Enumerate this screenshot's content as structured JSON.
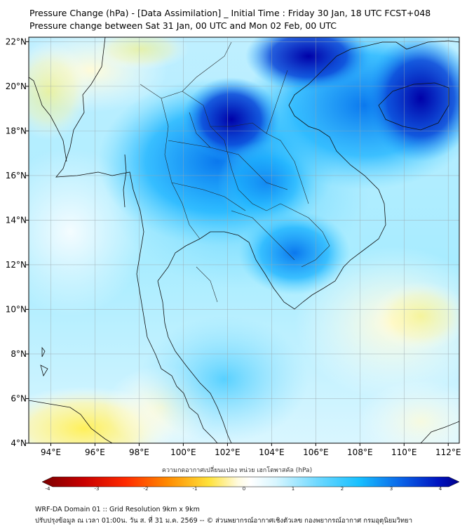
{
  "header": {
    "title_line1": "Pressure Change (hPa) - [Data Assimilation] _ Initial Time : Friday 30 Jan, 18 UTC FCST+048",
    "title_line2": "Pressure change between Sat 31 Jan, 00 UTC and Mon 02 Feb, 00 UTC"
  },
  "map": {
    "lon_ticks": [
      "94°E",
      "96°E",
      "98°E",
      "100°E",
      "102°E",
      "104°E",
      "106°E",
      "108°E",
      "110°E",
      "112°E"
    ],
    "lon_values": [
      94,
      96,
      98,
      100,
      102,
      104,
      106,
      108,
      110,
      112
    ],
    "lat_ticks": [
      "22°N",
      "20°N",
      "18°N",
      "16°N",
      "14°N",
      "12°N",
      "10°N",
      "8°N",
      "6°N",
      "4°N"
    ],
    "lat_values": [
      22,
      20,
      18,
      16,
      14,
      12,
      10,
      8,
      6,
      4
    ],
    "lon_range": [
      93,
      112.5
    ],
    "lat_range": [
      4,
      22.2
    ]
  },
  "colorbar": {
    "label": "ความกดอากาศเปลี่ยนแปลง หน่วย เฮกโตพาสคัล (hPa)",
    "tick_labels": [
      "-4",
      "-3",
      "-2",
      "-1",
      "0",
      "1",
      "2",
      "3",
      "4"
    ],
    "tick_values": [
      -4,
      -3,
      -2,
      -1,
      0,
      1,
      2,
      3,
      4
    ],
    "range": [
      -4,
      4
    ],
    "colors": {
      "neg_extreme": "#7a0000",
      "neg_strong": "#e00000",
      "neg_mid": "#ff8a00",
      "neg_weak": "#ffe23a",
      "zero": "#ffffff",
      "pos_weak": "#b8eeff",
      "pos_mid": "#1ec8ff",
      "pos_strong": "#0a5ae6",
      "pos_extreme": "#00008a"
    }
  },
  "footer": {
    "line1": "WRF-DA Domain 01 :: Grid Resolution 9km x 9km",
    "line2": "ปรับปรุงข้อมูล ณ เวลา 01:00น. วัน ส. ที่ 31 ม.ค. 2569 -- © ส่วนพยากรณ์อากาศเชิงตัวเลข กองพยากรณ์อากาศ กรมอุตุนิยมวิทยา"
  }
}
